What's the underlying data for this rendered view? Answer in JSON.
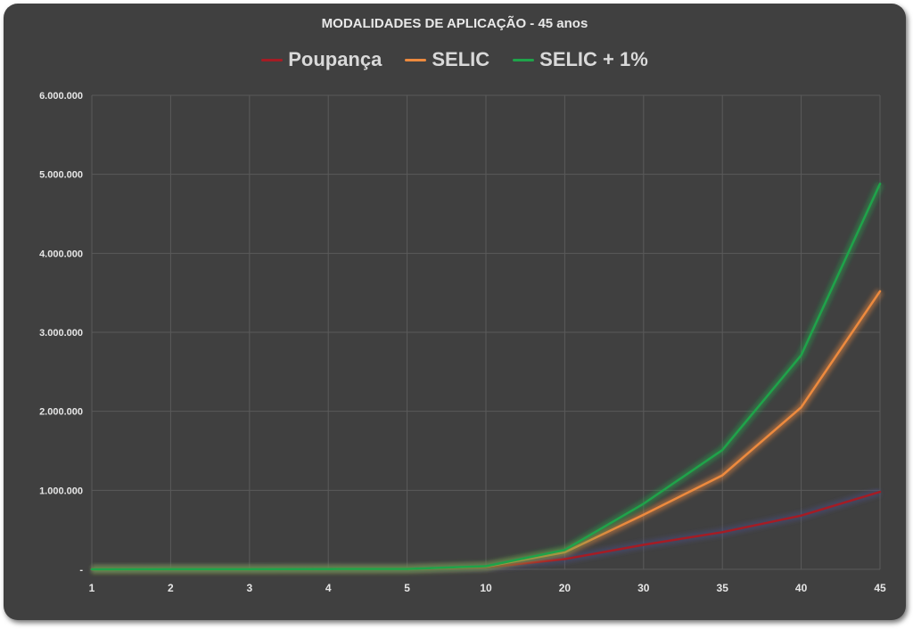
{
  "chart_data": {
    "type": "line",
    "title": "MODALIDADES DE APLICAÇÃO - 45 anos",
    "xlabel": "",
    "ylabel": "",
    "categories": [
      "1",
      "2",
      "3",
      "4",
      "5",
      "10",
      "20",
      "30",
      "35",
      "40",
      "45"
    ],
    "ylim": [
      0,
      6000000
    ],
    "yticks": [
      0,
      1000000,
      2000000,
      3000000,
      4000000,
      5000000,
      6000000
    ],
    "ytick_labels": [
      "-",
      "1.000.000",
      "2.000.000",
      "3.000.000",
      "4.000.000",
      "5.000.000",
      "6.000.000"
    ],
    "grid": true,
    "legend_position": "top",
    "series": [
      {
        "name": "Poupança",
        "color": "#a51c24",
        "values": [
          100,
          600,
          1500,
          3000,
          5000,
          25000,
          130000,
          310000,
          470000,
          680000,
          980000
        ]
      },
      {
        "name": "SELIC",
        "color": "#ed8a3e",
        "values": [
          100,
          600,
          1500,
          3000,
          5000,
          35000,
          215000,
          690000,
          1190000,
          2050000,
          3520000
        ]
      },
      {
        "name": "SELIC + 1%",
        "color": "#1fa34a",
        "values": [
          100,
          600,
          1500,
          3000,
          5000,
          40000,
          245000,
          830000,
          1510000,
          2710000,
          4880000
        ]
      }
    ]
  }
}
